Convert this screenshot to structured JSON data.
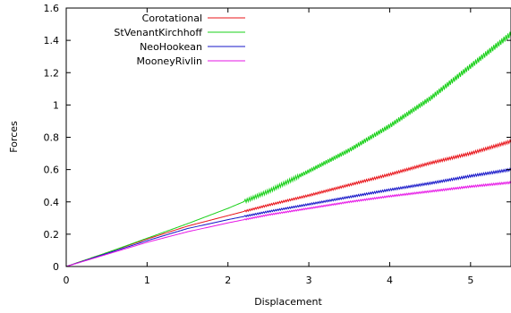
{
  "chart_data": {
    "type": "line",
    "title": "",
    "xlabel": "Displacement",
    "ylabel": "Forces",
    "xlim": [
      0,
      5.5
    ],
    "ylim": [
      0,
      1.6
    ],
    "xticks": [
      "0",
      "1",
      "2",
      "3",
      "4",
      "5"
    ],
    "yticks": [
      "0",
      "0.2",
      "0.4",
      "0.6",
      "0.8",
      "1",
      "1.2",
      "1.4",
      "1.6"
    ],
    "grid": false,
    "legend_position": "top-left",
    "series": [
      {
        "name": "Corotational",
        "color": "#e8141a",
        "x": [
          0,
          0.5,
          1,
          1.5,
          2,
          2.5,
          3,
          3.5,
          4,
          4.5,
          5,
          5.5
        ],
        "y": [
          0,
          0.085,
          0.17,
          0.25,
          0.315,
          0.38,
          0.44,
          0.505,
          0.57,
          0.64,
          0.7,
          0.775
        ]
      },
      {
        "name": "StVenantKirchhoff",
        "color": "#19d019",
        "x": [
          0,
          0.5,
          1,
          1.5,
          2,
          2.5,
          3,
          3.5,
          4,
          4.5,
          5,
          5.5
        ],
        "y": [
          0,
          0.085,
          0.175,
          0.265,
          0.36,
          0.465,
          0.59,
          0.72,
          0.87,
          1.04,
          1.24,
          1.44
        ]
      },
      {
        "name": "NeoHookean",
        "color": "#1414c8",
        "x": [
          0,
          0.5,
          1,
          1.5,
          2,
          2.5,
          3,
          3.5,
          4,
          4.5,
          5,
          5.5
        ],
        "y": [
          0,
          0.08,
          0.16,
          0.235,
          0.29,
          0.34,
          0.385,
          0.43,
          0.475,
          0.515,
          0.56,
          0.6
        ]
      },
      {
        "name": "MooneyRivlin",
        "color": "#e614e6",
        "x": [
          0,
          0.5,
          1,
          1.5,
          2,
          2.5,
          3,
          3.5,
          4,
          4.5,
          5,
          5.5
        ],
        "y": [
          0,
          0.075,
          0.15,
          0.215,
          0.27,
          0.32,
          0.36,
          0.4,
          0.435,
          0.465,
          0.495,
          0.52
        ]
      }
    ]
  }
}
